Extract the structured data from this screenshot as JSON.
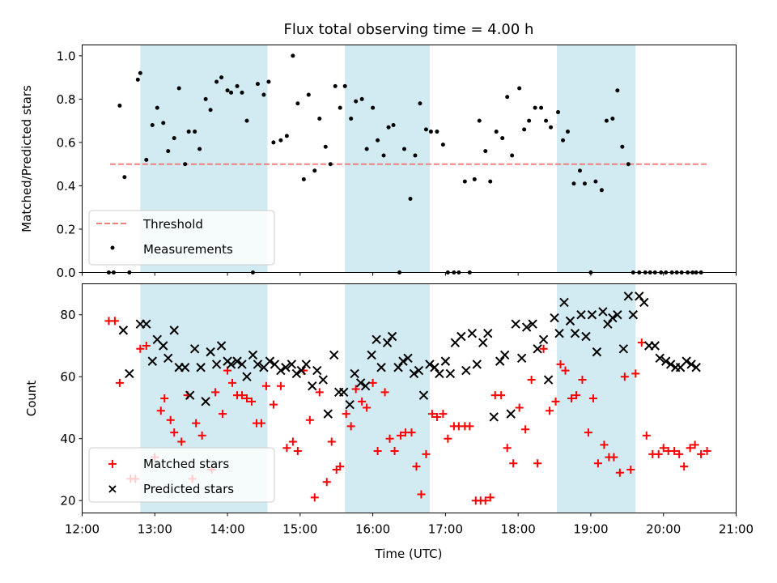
{
  "chart_data": {
    "title": "Flux total observing time = 4.00 h",
    "xlabel": "Time (UTC)",
    "type": "scatter",
    "xlim": [
      "12:00",
      "21:00"
    ],
    "x_ticks": [
      "12:00",
      "13:00",
      "14:00",
      "15:00",
      "16:00",
      "17:00",
      "18:00",
      "19:00",
      "20:00",
      "21:00"
    ],
    "shaded_intervals": [
      [
        "12:48",
        "14:33"
      ],
      [
        "15:37",
        "16:47"
      ],
      [
        "18:32",
        "19:37"
      ]
    ],
    "shade_color": "#add8e6",
    "panels": [
      {
        "ylabel": "Matched/Predicted stars",
        "ylim": [
          0,
          1.05
        ],
        "y_ticks": [
          "0.0",
          "0.2",
          "0.4",
          "0.6",
          "0.8",
          "1.0"
        ],
        "legend_position": "lower-left",
        "series": [
          {
            "name": "Threshold",
            "type": "line",
            "style": "dashed",
            "color": "#f08080",
            "x": [
              "12:23",
              "20:37"
            ],
            "y": [
              0.5,
              0.5
            ]
          },
          {
            "name": "Measurements",
            "type": "scatter",
            "marker": "dot",
            "color": "#000000",
            "x": [
              "12:22",
              "12:26",
              "12:31",
              "12:35",
              "12:39",
              "12:46",
              "12:48",
              "12:53",
              "12:58",
              "13:02",
              "13:07",
              "13:11",
              "13:16",
              "13:20",
              "13:25",
              "13:28",
              "13:33",
              "13:37",
              "13:42",
              "13:46",
              "13:51",
              "13:55",
              "14:00",
              "14:03",
              "14:08",
              "14:12",
              "14:16",
              "14:21",
              "14:25",
              "14:30",
              "14:34",
              "14:38",
              "14:44",
              "14:49",
              "14:54",
              "14:58",
              "15:03",
              "15:07",
              "15:12",
              "15:16",
              "15:21",
              "15:25",
              "15:29",
              "15:33",
              "15:37",
              "15:42",
              "15:46",
              "15:51",
              "15:55",
              "16:00",
              "16:04",
              "16:09",
              "16:13",
              "16:17",
              "16:22",
              "16:26",
              "16:31",
              "16:35",
              "16:39",
              "16:44",
              "16:48",
              "16:53",
              "16:58",
              "17:02",
              "17:07",
              "17:11",
              "17:16",
              "17:20",
              "17:24",
              "17:28",
              "17:33",
              "17:37",
              "17:42",
              "17:47",
              "17:51",
              "17:55",
              "18:01",
              "18:05",
              "18:09",
              "18:14",
              "18:19",
              "18:23",
              "18:27",
              "18:33",
              "18:37",
              "18:41",
              "18:46",
              "18:51",
              "18:55",
              "19:00",
              "19:04",
              "19:09",
              "19:13",
              "19:18",
              "19:22",
              "19:26",
              "19:31",
              "19:35",
              "19:40",
              "19:45",
              "19:49",
              "19:53",
              "19:58",
              "20:02",
              "20:07",
              "20:11",
              "20:15",
              "20:20",
              "20:24",
              "20:27",
              "20:31"
            ],
            "y": [
              0.0,
              0.0,
              0.77,
              0.44,
              0.0,
              0.89,
              0.92,
              0.52,
              0.68,
              0.76,
              0.69,
              0.56,
              0.62,
              0.85,
              0.5,
              0.65,
              0.65,
              0.57,
              0.8,
              0.75,
              0.88,
              0.9,
              0.84,
              0.83,
              0.86,
              0.83,
              0.7,
              0.0,
              0.87,
              0.82,
              0.88,
              0.6,
              0.61,
              0.63,
              1.0,
              0.78,
              0.43,
              0.82,
              0.47,
              0.71,
              0.58,
              0.5,
              0.86,
              0.76,
              0.86,
              0.71,
              0.79,
              0.8,
              0.57,
              0.76,
              0.61,
              0.54,
              0.67,
              0.68,
              0.0,
              0.57,
              0.34,
              0.54,
              0.78,
              0.66,
              0.65,
              0.65,
              0.59,
              0.0,
              0.0,
              0.0,
              0.42,
              0.0,
              0.43,
              0.7,
              0.56,
              0.42,
              0.65,
              0.62,
              0.81,
              0.54,
              0.85,
              0.66,
              0.7,
              0.76,
              0.76,
              0.7,
              0.67,
              0.74,
              0.61,
              0.65,
              0.41,
              0.47,
              0.41,
              0.0,
              0.42,
              0.38,
              0.7,
              0.71,
              0.84,
              0.58,
              0.5,
              0.0,
              0.0,
              0.0,
              0.0,
              0.0,
              0.0,
              0.0,
              0.0,
              0.0,
              0.0,
              0.0,
              0.0,
              0.0,
              0.0
            ]
          }
        ]
      },
      {
        "ylabel": "Count",
        "ylim": [
          16,
          90
        ],
        "y_ticks": [
          "20",
          "40",
          "60",
          "80"
        ],
        "legend_position": "lower-left",
        "series": [
          {
            "name": "Matched stars",
            "type": "scatter",
            "marker": "plus",
            "color": "#ff0000",
            "x": [
              "12:22",
              "12:27",
              "12:31",
              "12:40",
              "12:44",
              "12:48",
              "12:53",
              "13:00",
              "13:05",
              "13:08",
              "13:13",
              "13:16",
              "13:22",
              "13:27",
              "13:31",
              "13:34",
              "13:39",
              "13:47",
              "13:50",
              "13:56",
              "14:00",
              "14:04",
              "14:08",
              "14:12",
              "14:16",
              "14:20",
              "14:24",
              "14:28",
              "14:32",
              "14:38",
              "14:44",
              "14:49",
              "14:54",
              "14:58",
              "15:03",
              "15:08",
              "15:12",
              "15:16",
              "15:22",
              "15:26",
              "15:30",
              "15:33",
              "15:38",
              "15:42",
              "15:46",
              "15:51",
              "15:55",
              "16:00",
              "16:04",
              "16:10",
              "16:14",
              "16:18",
              "16:23",
              "16:27",
              "16:32",
              "16:36",
              "16:40",
              "16:44",
              "16:49",
              "16:53",
              "16:58",
              "17:02",
              "17:07",
              "17:11",
              "17:16",
              "17:20",
              "17:25",
              "17:29",
              "17:33",
              "17:37",
              "17:41",
              "17:46",
              "17:51",
              "17:56",
              "18:01",
              "18:06",
              "18:11",
              "18:16",
              "18:21",
              "18:26",
              "18:31",
              "18:35",
              "18:39",
              "18:44",
              "18:48",
              "18:53",
              "18:58",
              "19:02",
              "19:06",
              "19:11",
              "19:15",
              "19:19",
              "19:24",
              "19:28",
              "19:33",
              "19:37",
              "19:42",
              "19:46",
              "19:51",
              "19:56",
              "20:00",
              "20:04",
              "20:09",
              "20:13",
              "20:17",
              "20:22",
              "20:26",
              "20:31",
              "20:36"
            ],
            "y": [
              78,
              78,
              58,
              27,
              27,
              69,
              70,
              34,
              49,
              53,
              46,
              42,
              39,
              54,
              27,
              45,
              41,
              30,
              55,
              48,
              62,
              58,
              54,
              54,
              53,
              52,
              45,
              45,
              57,
              51,
              57,
              37,
              39,
              36,
              62,
              46,
              21,
              55,
              26,
              39,
              30,
              31,
              48,
              44,
              56,
              52,
              50,
              58,
              36,
              55,
              40,
              36,
              41,
              42,
              42,
              31,
              22,
              35,
              48,
              47,
              48,
              40,
              44,
              44,
              44,
              44,
              20,
              20,
              20,
              21,
              54,
              54,
              37,
              32,
              50,
              43,
              59,
              32,
              69,
              49,
              52,
              64,
              62,
              53,
              54,
              59,
              42,
              53,
              32,
              38,
              34,
              34,
              29,
              60,
              30,
              61,
              71,
              41,
              35,
              35,
              37,
              36,
              36,
              35,
              31,
              37,
              38,
              35,
              36
            ]
          },
          {
            "name": "Predicted stars",
            "type": "scatter",
            "marker": "x",
            "color": "#000000",
            "x": [
              "12:34",
              "12:39",
              "12:48",
              "12:53",
              "12:58",
              "13:02",
              "13:07",
              "13:11",
              "13:16",
              "13:20",
              "13:25",
              "13:29",
              "13:33",
              "13:38",
              "13:42",
              "13:46",
              "13:51",
              "13:55",
              "14:00",
              "14:03",
              "14:08",
              "14:12",
              "14:16",
              "14:21",
              "14:25",
              "14:30",
              "14:35",
              "14:39",
              "14:44",
              "14:48",
              "14:53",
              "14:57",
              "15:01",
              "15:05",
              "15:10",
              "15:14",
              "15:19",
              "15:23",
              "15:28",
              "15:32",
              "15:36",
              "15:41",
              "15:45",
              "15:50",
              "15:54",
              "15:59",
              "16:03",
              "16:07",
              "16:12",
              "16:16",
              "16:21",
              "16:25",
              "16:29",
              "16:34",
              "16:38",
              "16:42",
              "16:47",
              "16:51",
              "16:55",
              "17:00",
              "17:04",
              "17:08",
              "17:13",
              "17:17",
              "17:22",
              "17:26",
              "17:31",
              "17:35",
              "17:40",
              "17:45",
              "17:49",
              "17:54",
              "17:58",
              "18:03",
              "18:07",
              "18:12",
              "18:16",
              "18:21",
              "18:25",
              "18:30",
              "18:34",
              "18:38",
              "18:43",
              "18:47",
              "18:52",
              "18:56",
              "19:01",
              "19:05",
              "19:10",
              "19:14",
              "19:18",
              "19:22",
              "19:27",
              "19:31",
              "19:35",
              "19:40",
              "19:44",
              "19:48",
              "19:53",
              "19:57",
              "20:02",
              "20:06",
              "20:10",
              "20:14",
              "20:19",
              "20:23",
              "20:27"
            ],
            "y": [
              75,
              61,
              77,
              77,
              65,
              72,
              70,
              66,
              75,
              63,
              63,
              54,
              69,
              63,
              52,
              68,
              64,
              70,
              65,
              64,
              65,
              64,
              60,
              67,
              64,
              63,
              65,
              64,
              62,
              63,
              64,
              61,
              62,
              64,
              57,
              62,
              59,
              48,
              67,
              55,
              55,
              51,
              61,
              58,
              57,
              67,
              72,
              63,
              71,
              73,
              63,
              65,
              66,
              61,
              62,
              54,
              64,
              63,
              61,
              65,
              61,
              71,
              73,
              62,
              74,
              64,
              71,
              74,
              47,
              65,
              67,
              48,
              77,
              66,
              76,
              77,
              69,
              72,
              59,
              79,
              74,
              84,
              78,
              74,
              80,
              73,
              80,
              68,
              81,
              77,
              79,
              80,
              69,
              86,
              80,
              86,
              84,
              70,
              70,
              66,
              65,
              64,
              63,
              63,
              65,
              64,
              63
            ]
          }
        ]
      }
    ]
  }
}
